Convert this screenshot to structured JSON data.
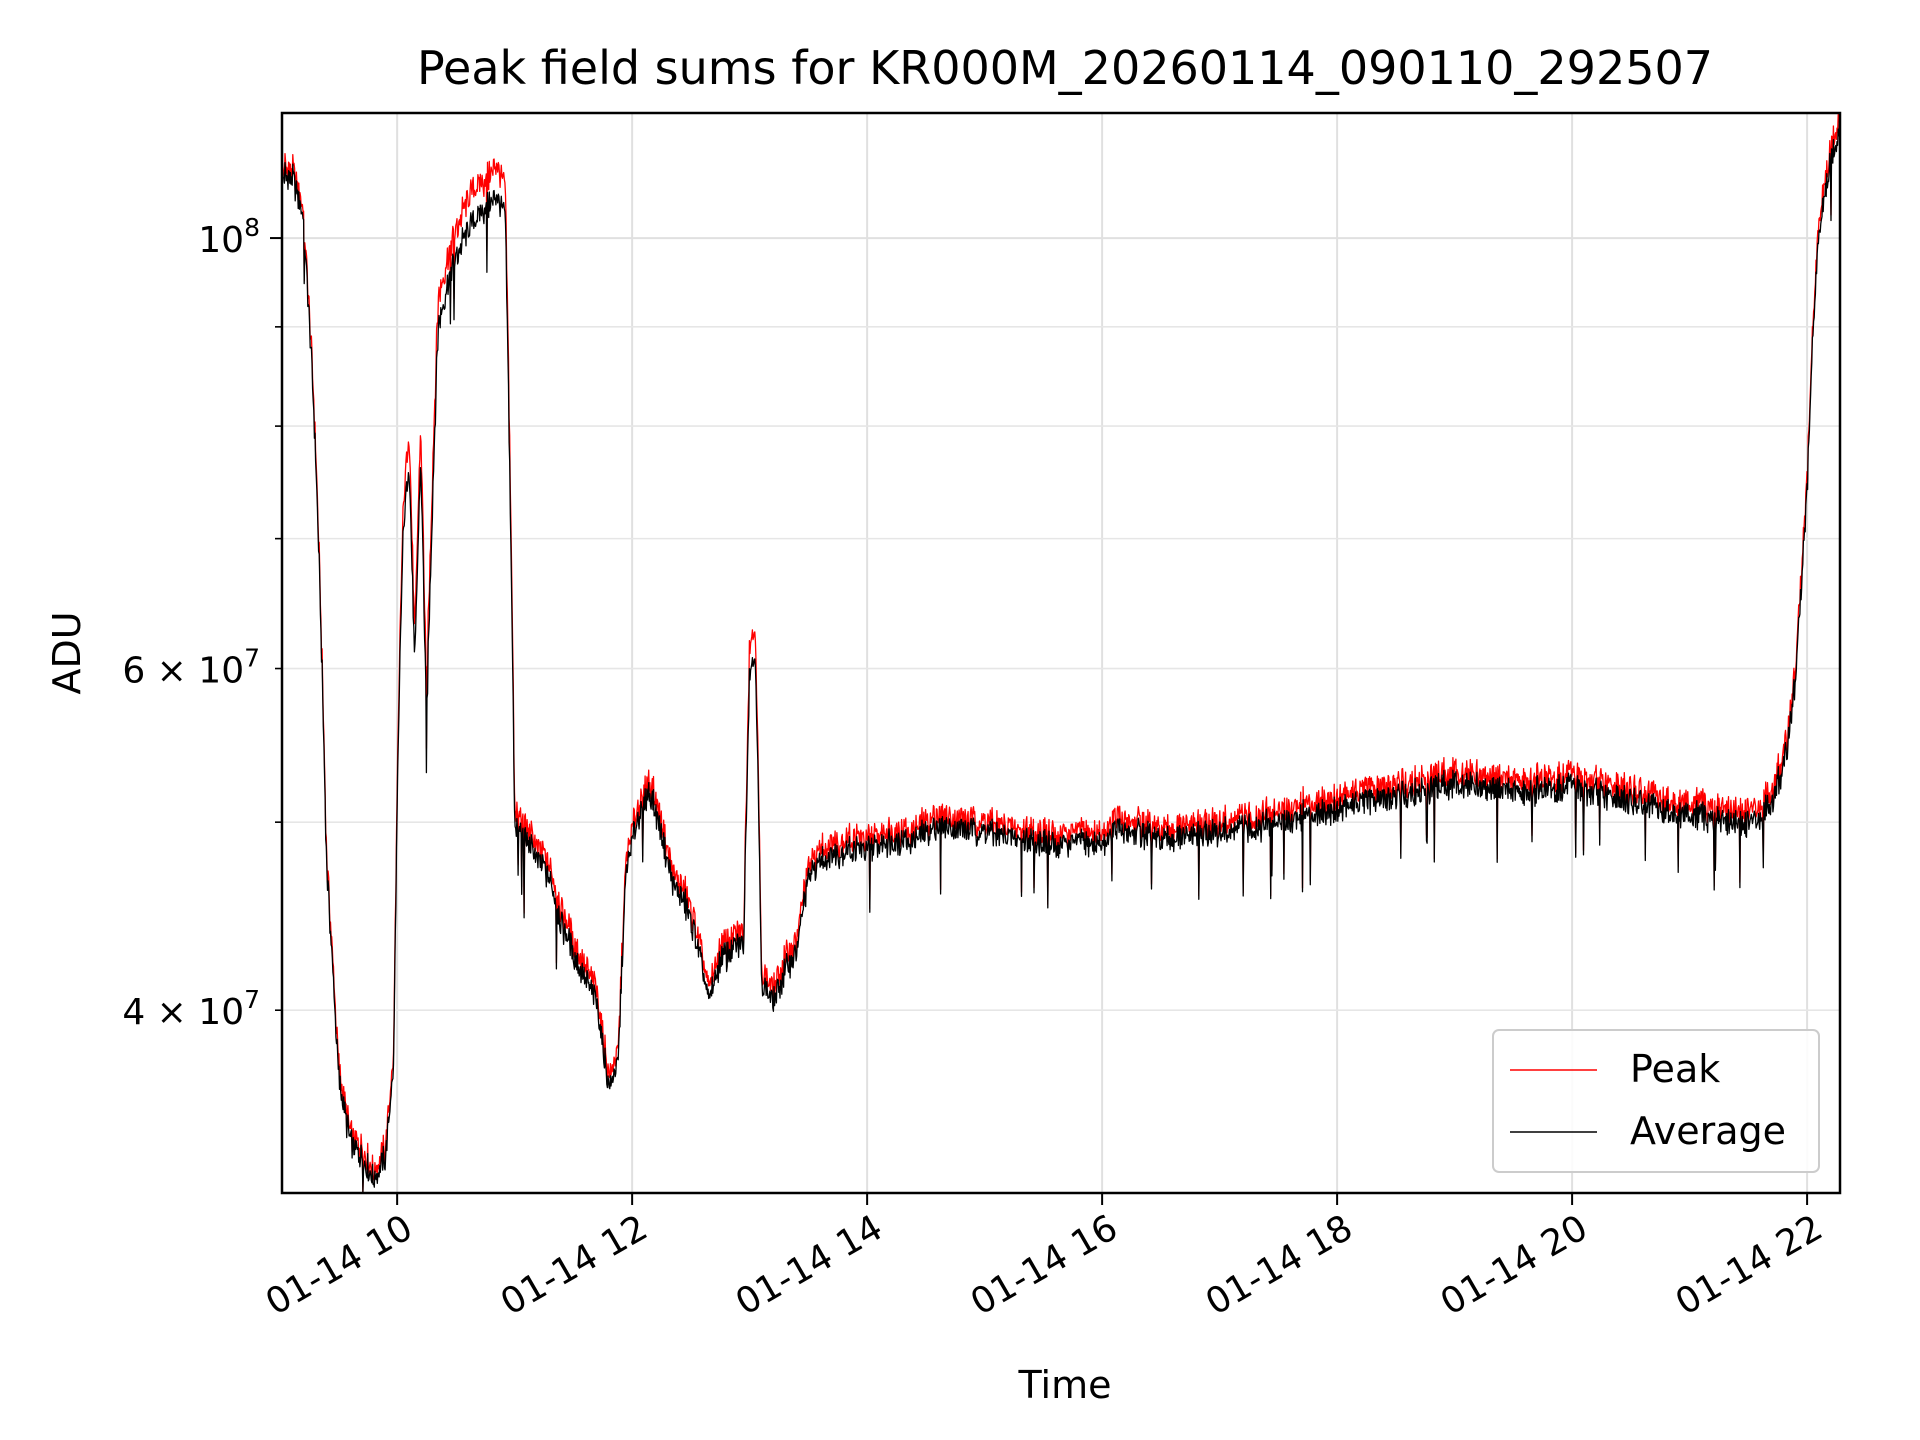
{
  "chart_data": {
    "type": "line",
    "title": "Peak field sums for KR000M_20260114_090110_292507",
    "xlabel": "Time",
    "ylabel": "ADU",
    "yscale": "log",
    "grid": true,
    "legend_position": "lower-right",
    "x_unit": "hours since 00:00 on 01-14",
    "xlim": [
      9.02,
      22.28
    ],
    "ylim": [
      32200000,
      116000000
    ],
    "x_ticks": [
      {
        "value": 10,
        "label": "01-14 10"
      },
      {
        "value": 12,
        "label": "01-14 12"
      },
      {
        "value": 14,
        "label": "01-14 14"
      },
      {
        "value": 16,
        "label": "01-14 16"
      },
      {
        "value": 18,
        "label": "01-14 18"
      },
      {
        "value": 20,
        "label": "01-14 20"
      },
      {
        "value": 22,
        "label": "01-14 22"
      }
    ],
    "y_major_ticks": [
      {
        "value": 100000000,
        "base": "10",
        "exp": "8",
        "label": "10^8"
      }
    ],
    "y_minor_ticks": [
      {
        "value": 40000000,
        "mantissa": "4 × 10",
        "exp": "7",
        "label": "4 × 10^7"
      },
      {
        "value": 60000000,
        "mantissa": "6 × 10",
        "exp": "7",
        "label": "6 × 10^7"
      },
      {
        "value": 50000000,
        "label": ""
      },
      {
        "value": 70000000,
        "label": ""
      },
      {
        "value": 80000000,
        "label": ""
      },
      {
        "value": 90000000,
        "label": ""
      }
    ],
    "series": [
      {
        "name": "Peak",
        "color": "#ff0000",
        "noise_amp": 2200000,
        "x": [
          9.02,
          9.12,
          9.2,
          9.3,
          9.4,
          9.5,
          9.6,
          9.7,
          9.8,
          9.9,
          9.97,
          10.0,
          10.05,
          10.1,
          10.15,
          10.2,
          10.25,
          10.35,
          10.45,
          10.55,
          10.65,
          10.75,
          10.85,
          10.92,
          10.97,
          11.0,
          11.1,
          11.2,
          11.3,
          11.4,
          11.5,
          11.6,
          11.7,
          11.8,
          11.88,
          11.95,
          12.05,
          12.15,
          12.25,
          12.35,
          12.45,
          12.55,
          12.65,
          12.75,
          12.85,
          12.95,
          13.0,
          13.05,
          13.1,
          13.2,
          13.3,
          13.4,
          13.5,
          13.6,
          13.8,
          14.0,
          14.2,
          14.4,
          14.6,
          14.8,
          15.0,
          15.2,
          15.4,
          15.6,
          15.8,
          16.0,
          16.1,
          16.3,
          16.5,
          16.7,
          17.0,
          17.3,
          17.6,
          18.0,
          18.3,
          18.6,
          19.0,
          19.3,
          19.6,
          20.0,
          20.3,
          20.6,
          20.9,
          21.2,
          21.4,
          21.6,
          21.7,
          21.8,
          21.85,
          21.9,
          21.95,
          22.0,
          22.05,
          22.1,
          22.2,
          22.28
        ],
        "values": [
          109000000,
          108000000,
          104000000,
          80000000,
          48000000,
          37500000,
          34500000,
          34000000,
          33000000,
          34000000,
          38000000,
          52000000,
          72000000,
          80000000,
          62000000,
          80000000,
          58000000,
          93000000,
          99000000,
          103000000,
          106000000,
          107000000,
          109000000,
          106000000,
          70000000,
          51000000,
          49500000,
          48500000,
          47500000,
          45000000,
          43500000,
          42000000,
          41000000,
          37000000,
          38000000,
          48000000,
          51000000,
          52500000,
          50000000,
          47000000,
          46000000,
          44000000,
          41000000,
          43000000,
          43500000,
          44000000,
          62000000,
          63000000,
          42000000,
          41000000,
          42500000,
          43500000,
          47500000,
          48500000,
          49000000,
          49000000,
          49500000,
          49500000,
          50500000,
          50200000,
          50000000,
          49800000,
          49500000,
          49200000,
          49500000,
          49200000,
          50200000,
          50000000,
          49500000,
          49700000,
          50000000,
          50300000,
          50900000,
          51500000,
          52000000,
          52400000,
          53000000,
          52800000,
          52500000,
          52800000,
          52300000,
          51800000,
          51200000,
          51000000,
          50500000,
          50800000,
          52000000,
          54000000,
          56500000,
          60000000,
          67000000,
          75000000,
          90000000,
          102000000,
          111000000,
          116000000
        ]
      },
      {
        "name": "Average",
        "color": "#000000",
        "noise_amp": 2000000,
        "x": [
          9.02,
          9.12,
          9.2,
          9.3,
          9.4,
          9.5,
          9.6,
          9.7,
          9.8,
          9.9,
          9.97,
          10.0,
          10.05,
          10.1,
          10.15,
          10.2,
          10.25,
          10.35,
          10.45,
          10.55,
          10.65,
          10.75,
          10.85,
          10.92,
          10.97,
          11.0,
          11.1,
          11.2,
          11.3,
          11.4,
          11.5,
          11.6,
          11.7,
          11.8,
          11.88,
          11.95,
          12.05,
          12.15,
          12.25,
          12.35,
          12.45,
          12.55,
          12.65,
          12.75,
          12.85,
          12.95,
          13.0,
          13.05,
          13.1,
          13.2,
          13.3,
          13.4,
          13.5,
          13.6,
          13.8,
          14.0,
          14.2,
          14.4,
          14.6,
          14.8,
          15.0,
          15.2,
          15.4,
          15.6,
          15.8,
          16.0,
          16.1,
          16.3,
          16.5,
          16.7,
          17.0,
          17.3,
          17.6,
          18.0,
          18.3,
          18.6,
          19.0,
          19.3,
          19.6,
          20.0,
          20.3,
          20.6,
          20.9,
          21.2,
          21.4,
          21.6,
          21.7,
          21.8,
          21.85,
          21.9,
          21.95,
          22.0,
          22.05,
          22.1,
          22.2,
          22.28
        ],
        "values": [
          108000000,
          107000000,
          103000000,
          79000000,
          47500000,
          37000000,
          34200000,
          33600000,
          32700000,
          33600000,
          37500000,
          51000000,
          70000000,
          77000000,
          60000000,
          77000000,
          56000000,
          90000000,
          96000000,
          99500000,
          102000000,
          103500000,
          105000000,
          102500000,
          68000000,
          50000000,
          48800000,
          47800000,
          46800000,
          44300000,
          42800000,
          41400000,
          40400000,
          36500000,
          37500000,
          47300000,
          50300000,
          51800000,
          49300000,
          46400000,
          45400000,
          43400000,
          40400000,
          42400000,
          42900000,
          43400000,
          60000000,
          61000000,
          41400000,
          40400000,
          41900000,
          42900000,
          46900000,
          47800000,
          48300000,
          48400000,
          48900000,
          48900000,
          49800000,
          49600000,
          49400000,
          49200000,
          48900000,
          48600000,
          48900000,
          48600000,
          49500000,
          49400000,
          48900000,
          49100000,
          49400000,
          49700000,
          50200000,
          50800000,
          51300000,
          51700000,
          52300000,
          52100000,
          51800000,
          52100000,
          51600000,
          51100000,
          50500000,
          50300000,
          49800000,
          50100000,
          51300000,
          53300000,
          55800000,
          59300000,
          66000000,
          74000000,
          89000000,
          100500000,
          109500000,
          114000000
        ]
      }
    ]
  }
}
